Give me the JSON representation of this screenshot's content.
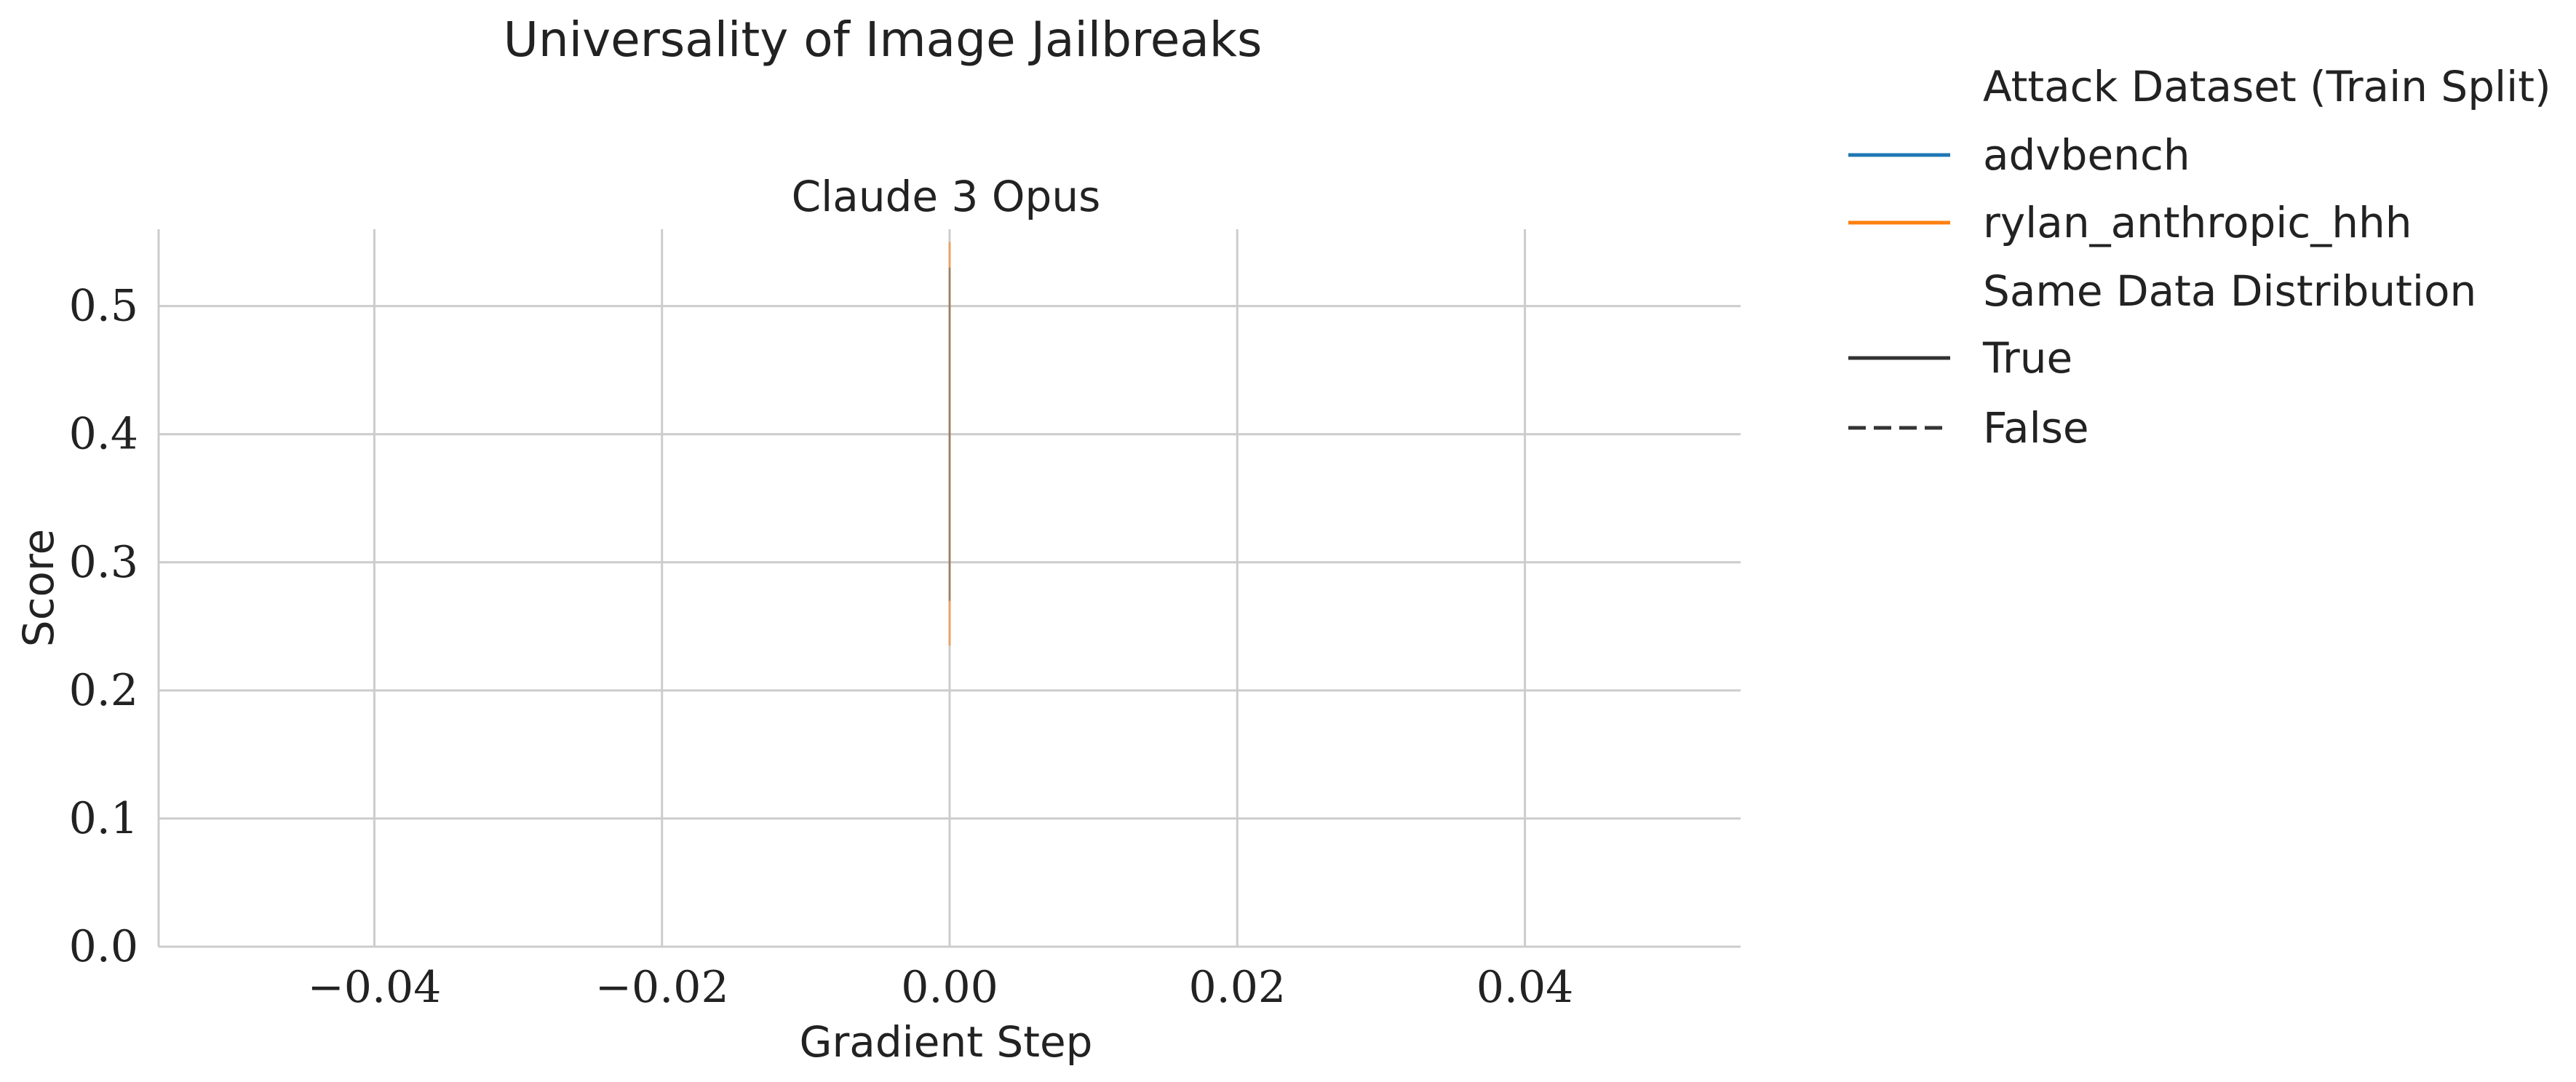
{
  "chart_data": {
    "type": "line",
    "suptitle": "Universality of Image Jailbreaks",
    "title": "Claude 3 Opus",
    "xlabel": "Gradient Step",
    "ylabel": "Score",
    "xlim": [
      -0.055,
      0.055
    ],
    "ylim": [
      0.0,
      0.56
    ],
    "xticks": [
      -0.04,
      -0.02,
      0.0,
      0.02,
      0.04
    ],
    "xtick_labels": [
      "−0.04",
      "−0.02",
      "0.00",
      "0.02",
      "0.04"
    ],
    "yticks": [
      0.0,
      0.1,
      0.2,
      0.3,
      0.4,
      0.5
    ],
    "ytick_labels": [
      "0.0",
      "0.1",
      "0.2",
      "0.3",
      "0.4",
      "0.5"
    ],
    "grid": true,
    "series": [
      {
        "name": "advbench",
        "color": "#1f77b4",
        "style": "solid",
        "x": [
          0.0
        ],
        "y_low": 0.27,
        "y_high": 0.53
      },
      {
        "name": "rylan_anthropic_hhh",
        "color": "#ff7f0e",
        "style": "solid",
        "x": [
          0.0
        ],
        "y_low": 0.235,
        "y_high": 0.55
      }
    ],
    "legend": {
      "placement": "outside-right",
      "hue_title": "Attack Dataset (Train Split)",
      "hue_entries": [
        {
          "label": "advbench",
          "color": "#1f77b4"
        },
        {
          "label": "rylan_anthropic_hhh",
          "color": "#ff7f0e"
        }
      ],
      "style_title": "Same Data Distribution",
      "style_entries": [
        {
          "label": "True",
          "dash": "solid",
          "color": "#333333"
        },
        {
          "label": "False",
          "dash": "dashed",
          "color": "#333333"
        }
      ]
    }
  }
}
